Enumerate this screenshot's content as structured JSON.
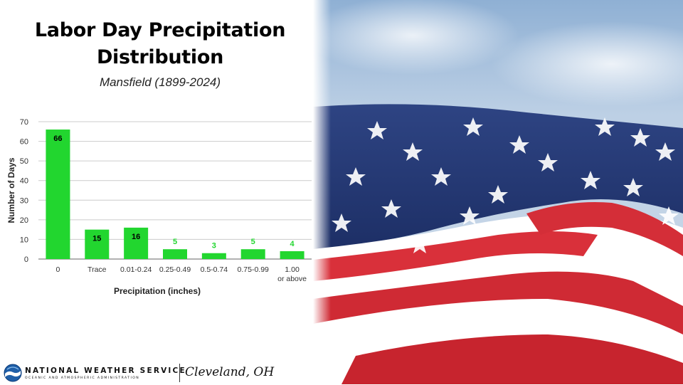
{
  "title_line1": "Labor Day Precipitation",
  "title_line2": "Distribution",
  "subtitle": "Mansfield (1899-2024)",
  "footer": {
    "org_name": "NATIONAL WEATHER SERVICE",
    "org_sub": "OCEANIC AND ATMOSPHERIC ADMINISTRATION",
    "office": "Cleveland, OH"
  },
  "colors": {
    "bar": "#22d62f",
    "label": "#000000",
    "gridline": "#cccccc"
  },
  "chart_data": {
    "type": "bar",
    "categories": [
      "0",
      "Trace",
      "0.01-0.24",
      "0.25-0.49",
      "0.5-0.74",
      "0.75-0.99",
      "1.00 or above"
    ],
    "values": [
      66,
      15,
      16,
      5,
      3,
      5,
      4
    ],
    "xlabel": "Precipitation (inches)",
    "ylabel": "Number of Days",
    "ylim": [
      0,
      70
    ],
    "yticks": [
      0,
      10,
      20,
      30,
      40,
      50,
      60,
      70
    ],
    "grid": true,
    "legend": "none",
    "data_labels": true
  }
}
